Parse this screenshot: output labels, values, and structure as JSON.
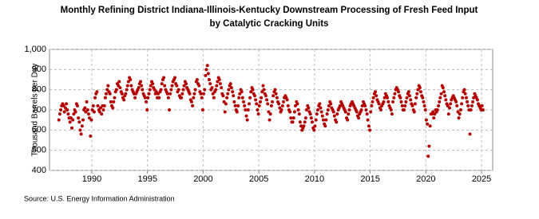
{
  "chart_data": {
    "type": "scatter",
    "title": "Monthly Refining District Indiana-Illinois-Kentucky Downstream Processing of Fresh Feed Input",
    "subtitle": "by Catalytic Cracking Units",
    "y_label": "Thousand Barrels per Day",
    "source": "Source: U.S. Energy Information Administration",
    "color": "#b30000",
    "grid": true,
    "xlim": [
      1986.2,
      2026
    ],
    "xticks": [
      1990,
      1995,
      2000,
      2005,
      2010,
      2015,
      2020,
      2025
    ],
    "ylim": [
      400,
      1000
    ],
    "yticks": [
      400,
      500,
      600,
      700,
      800,
      900,
      {
        "value": 1000,
        "label": "1,000"
      }
    ],
    "x": [
      1987.04,
      1987.13,
      1987.21,
      1987.29,
      1987.38,
      1987.46,
      1987.54,
      1987.63,
      1987.71,
      1987.79,
      1987.88,
      1987.96,
      1988.04,
      1988.13,
      1988.21,
      1988.29,
      1988.38,
      1988.46,
      1988.54,
      1988.63,
      1988.71,
      1988.79,
      1988.88,
      1988.96,
      1989.04,
      1989.13,
      1989.21,
      1989.29,
      1989.38,
      1989.46,
      1989.54,
      1989.63,
      1989.71,
      1989.79,
      1989.88,
      1989.96,
      1990.04,
      1990.13,
      1990.21,
      1990.29,
      1990.38,
      1990.46,
      1990.54,
      1990.63,
      1990.71,
      1990.79,
      1990.88,
      1990.96,
      1991.04,
      1991.13,
      1991.21,
      1991.29,
      1991.38,
      1991.46,
      1991.54,
      1991.63,
      1991.71,
      1991.79,
      1991.88,
      1991.96,
      1992.04,
      1992.13,
      1992.21,
      1992.29,
      1992.38,
      1992.46,
      1992.54,
      1992.63,
      1992.71,
      1992.79,
      1992.88,
      1992.96,
      1993.04,
      1993.13,
      1993.21,
      1993.29,
      1993.38,
      1993.46,
      1993.54,
      1993.63,
      1993.71,
      1993.79,
      1993.88,
      1993.96,
      1994.04,
      1994.13,
      1994.21,
      1994.29,
      1994.38,
      1994.46,
      1994.54,
      1994.63,
      1994.71,
      1994.79,
      1994.88,
      1994.96,
      1995.04,
      1995.13,
      1995.21,
      1995.29,
      1995.38,
      1995.46,
      1995.54,
      1995.63,
      1995.71,
      1995.79,
      1995.88,
      1995.96,
      1996.04,
      1996.13,
      1996.21,
      1996.29,
      1996.38,
      1996.46,
      1996.54,
      1996.63,
      1996.71,
      1996.79,
      1996.88,
      1996.96,
      1997.04,
      1997.13,
      1997.21,
      1997.29,
      1997.38,
      1997.46,
      1997.54,
      1997.63,
      1997.71,
      1997.79,
      1997.88,
      1997.96,
      1998.04,
      1998.13,
      1998.21,
      1998.29,
      1998.38,
      1998.46,
      1998.54,
      1998.63,
      1998.71,
      1998.79,
      1998.88,
      1998.96,
      1999.04,
      1999.13,
      1999.21,
      1999.29,
      1999.38,
      1999.46,
      1999.54,
      1999.63,
      1999.71,
      1999.79,
      1999.88,
      1999.96,
      2000.04,
      2000.13,
      2000.21,
      2000.29,
      2000.38,
      2000.46,
      2000.54,
      2000.63,
      2000.71,
      2000.79,
      2000.88,
      2000.96,
      2001.04,
      2001.13,
      2001.21,
      2001.29,
      2001.38,
      2001.46,
      2001.54,
      2001.63,
      2001.71,
      2001.79,
      2001.88,
      2001.96,
      2002.04,
      2002.13,
      2002.21,
      2002.29,
      2002.38,
      2002.46,
      2002.54,
      2002.63,
      2002.71,
      2002.79,
      2002.88,
      2002.96,
      2003.04,
      2003.13,
      2003.21,
      2003.29,
      2003.38,
      2003.46,
      2003.54,
      2003.63,
      2003.71,
      2003.79,
      2003.88,
      2003.96,
      2004.04,
      2004.13,
      2004.21,
      2004.29,
      2004.38,
      2004.46,
      2004.54,
      2004.63,
      2004.71,
      2004.79,
      2004.88,
      2004.96,
      2005.04,
      2005.13,
      2005.21,
      2005.29,
      2005.38,
      2005.46,
      2005.54,
      2005.63,
      2005.71,
      2005.79,
      2005.88,
      2005.96,
      2006.04,
      2006.13,
      2006.21,
      2006.29,
      2006.38,
      2006.46,
      2006.54,
      2006.63,
      2006.71,
      2006.79,
      2006.88,
      2006.96,
      2007.04,
      2007.13,
      2007.21,
      2007.29,
      2007.38,
      2007.46,
      2007.54,
      2007.63,
      2007.71,
      2007.79,
      2007.88,
      2007.96,
      2008.04,
      2008.13,
      2008.21,
      2008.29,
      2008.38,
      2008.46,
      2008.54,
      2008.63,
      2008.71,
      2008.79,
      2008.88,
      2008.96,
      2009.04,
      2009.13,
      2009.21,
      2009.29,
      2009.38,
      2009.46,
      2009.54,
      2009.63,
      2009.71,
      2009.79,
      2009.88,
      2009.96,
      2010.04,
      2010.13,
      2010.21,
      2010.29,
      2010.38,
      2010.46,
      2010.54,
      2010.63,
      2010.71,
      2010.79,
      2010.88,
      2010.96,
      2011.04,
      2011.13,
      2011.21,
      2011.29,
      2011.38,
      2011.46,
      2011.54,
      2011.63,
      2011.71,
      2011.79,
      2011.88,
      2011.96,
      2012.04,
      2012.13,
      2012.21,
      2012.29,
      2012.38,
      2012.46,
      2012.54,
      2012.63,
      2012.71,
      2012.79,
      2012.88,
      2012.96,
      2013.04,
      2013.13,
      2013.21,
      2013.29,
      2013.38,
      2013.46,
      2013.54,
      2013.63,
      2013.71,
      2013.79,
      2013.88,
      2013.96,
      2014.04,
      2014.13,
      2014.21,
      2014.29,
      2014.38,
      2014.46,
      2014.54,
      2014.63,
      2014.71,
      2014.79,
      2014.88,
      2014.96,
      2015.04,
      2015.13,
      2015.21,
      2015.29,
      2015.38,
      2015.46,
      2015.54,
      2015.63,
      2015.71,
      2015.79,
      2015.88,
      2015.96,
      2016.04,
      2016.13,
      2016.21,
      2016.29,
      2016.38,
      2016.46,
      2016.54,
      2016.63,
      2016.71,
      2016.79,
      2016.88,
      2016.96,
      2017.04,
      2017.13,
      2017.21,
      2017.29,
      2017.38,
      2017.46,
      2017.54,
      2017.63,
      2017.71,
      2017.79,
      2017.88,
      2017.96,
      2018.04,
      2018.13,
      2018.21,
      2018.29,
      2018.38,
      2018.46,
      2018.54,
      2018.63,
      2018.71,
      2018.79,
      2018.88,
      2018.96,
      2019.04,
      2019.13,
      2019.21,
      2019.29,
      2019.38,
      2019.46,
      2019.54,
      2019.63,
      2019.71,
      2019.79,
      2019.88,
      2019.96,
      2020.04,
      2020.13,
      2020.21,
      2020.29,
      2020.38,
      2020.46,
      2020.54,
      2020.63,
      2020.71,
      2020.79,
      2020.88,
      2020.96,
      2021.04,
      2021.13,
      2021.21,
      2021.29,
      2021.38,
      2021.46,
      2021.54,
      2021.63,
      2021.71,
      2021.79,
      2021.88,
      2021.96,
      2022.04,
      2022.13,
      2022.21,
      2022.29,
      2022.38,
      2022.46,
      2022.54,
      2022.63,
      2022.71,
      2022.79,
      2022.88,
      2022.96,
      2023.04,
      2023.13,
      2023.21,
      2023.29,
      2023.38,
      2023.46,
      2023.54,
      2023.63,
      2023.71,
      2023.79,
      2023.88,
      2023.96,
      2024.04,
      2024.13,
      2024.21,
      2024.29,
      2024.38,
      2024.46,
      2024.54,
      2024.63,
      2024.71,
      2024.79,
      2024.88,
      2024.96,
      2025.04,
      2025.13
    ],
    "values": [
      650,
      680,
      700,
      720,
      730,
      720,
      690,
      710,
      730,
      700,
      680,
      660,
      640,
      660,
      610,
      650,
      680,
      700,
      690,
      730,
      720,
      660,
      640,
      600,
      580,
      620,
      650,
      700,
      710,
      690,
      740,
      700,
      680,
      660,
      570,
      650,
      700,
      720,
      690,
      760,
      780,
      790,
      720,
      700,
      690,
      710,
      680,
      720,
      700,
      720,
      760,
      780,
      800,
      820,
      790,
      780,
      740,
      720,
      710,
      740,
      760,
      790,
      800,
      830,
      820,
      840,
      810,
      790,
      780,
      760,
      750,
      770,
      780,
      800,
      820,
      840,
      860,
      850,
      820,
      800,
      790,
      780,
      760,
      780,
      790,
      800,
      810,
      830,
      840,
      820,
      800,
      780,
      770,
      760,
      740,
      700,
      760,
      780,
      800,
      820,
      840,
      830,
      810,
      800,
      780,
      790,
      760,
      780,
      760,
      790,
      800,
      830,
      850,
      860,
      820,
      800,
      790,
      780,
      760,
      700,
      780,
      800,
      820,
      840,
      850,
      860,
      830,
      820,
      790,
      800,
      770,
      760,
      760,
      780,
      800,
      820,
      840,
      830,
      810,
      800,
      790,
      780,
      750,
      740,
      720,
      760,
      780,
      800,
      840,
      850,
      830,
      820,
      790,
      780,
      760,
      700,
      780,
      800,
      870,
      900,
      920,
      880,
      850,
      830,
      800,
      810,
      780,
      760,
      790,
      800,
      820,
      840,
      860,
      850,
      830,
      810,
      780,
      770,
      740,
      690,
      730,
      760,
      780,
      800,
      820,
      830,
      810,
      790,
      770,
      740,
      720,
      700,
      690,
      720,
      760,
      780,
      800,
      790,
      760,
      740,
      720,
      700,
      670,
      650,
      700,
      730,
      760,
      790,
      810,
      800,
      780,
      770,
      750,
      730,
      700,
      680,
      720,
      740,
      760,
      790,
      820,
      800,
      780,
      770,
      750,
      730,
      690,
      650,
      680,
      720,
      740,
      770,
      790,
      800,
      780,
      760,
      740,
      730,
      710,
      690,
      700,
      720,
      740,
      760,
      770,
      760,
      750,
      720,
      700,
      690,
      660,
      640,
      640,
      660,
      690,
      720,
      740,
      730,
      700,
      680,
      640,
      620,
      600,
      610,
      620,
      640,
      660,
      700,
      720,
      710,
      690,
      680,
      660,
      640,
      610,
      600,
      620,
      650,
      680,
      700,
      720,
      730,
      710,
      690,
      670,
      650,
      630,
      620,
      650,
      680,
      700,
      720,
      740,
      730,
      710,
      700,
      690,
      670,
      650,
      640,
      680,
      700,
      710,
      720,
      740,
      730,
      720,
      710,
      700,
      690,
      660,
      650,
      680,
      700,
      720,
      730,
      740,
      730,
      720,
      710,
      700,
      690,
      670,
      660,
      680,
      690,
      700,
      720,
      740,
      730,
      720,
      700,
      680,
      650,
      620,
      600,
      690,
      720,
      740,
      760,
      780,
      790,
      770,
      750,
      740,
      730,
      710,
      700,
      720,
      730,
      740,
      760,
      780,
      770,
      760,
      740,
      720,
      710,
      700,
      680,
      740,
      760,
      780,
      800,
      810,
      800,
      790,
      770,
      760,
      740,
      720,
      700,
      700,
      720,
      740,
      760,
      780,
      790,
      770,
      750,
      730,
      720,
      700,
      690,
      730,
      760,
      780,
      800,
      820,
      810,
      790,
      770,
      760,
      740,
      720,
      700,
      650,
      630,
      470,
      520,
      620,
      680,
      680,
      690,
      660,
      680,
      700,
      690,
      700,
      720,
      740,
      760,
      780,
      820,
      810,
      790,
      770,
      750,
      730,
      720,
      680,
      710,
      730,
      750,
      760,
      770,
      760,
      750,
      740,
      720,
      690,
      660,
      680,
      700,
      730,
      760,
      790,
      800,
      780,
      760,
      740,
      720,
      700,
      580,
      700,
      720,
      740,
      760,
      780,
      770,
      760,
      750,
      730,
      720,
      710,
      700,
      720,
      700
    ]
  }
}
